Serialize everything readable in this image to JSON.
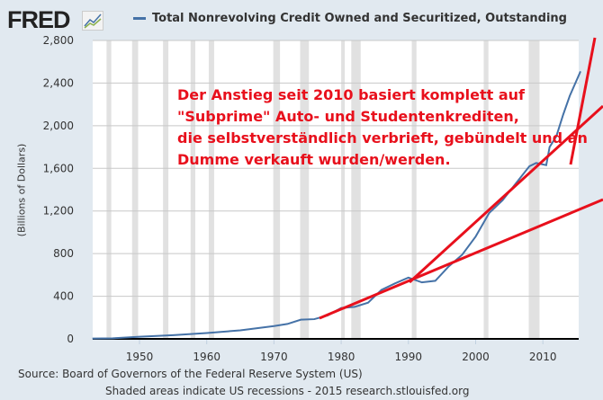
{
  "header": {
    "logo": "FRED",
    "legend": "Total Nonrevolving Credit Owned and Securitized, Outstanding"
  },
  "annotation": [
    "Der Anstieg seit 2010 basiert komplett auf",
    "\"Subprime\" Auto- und Studentenkrediten,",
    "die selbstverständlich verbrieft, gebündelt und an",
    "Dumme verkauft wurden/werden."
  ],
  "footer": {
    "source": "Source: Board of Governors of the Federal Reserve System (US)",
    "note": "Shaded areas indicate US recessions - 2015 research.stlouisfed.org"
  },
  "chart_data": {
    "type": "line",
    "title": "",
    "xlabel": "",
    "ylabel": "(Billions of Dollars)",
    "xlim": [
      1943,
      2015.6
    ],
    "ylim": [
      0,
      2800
    ],
    "x_ticks": [
      "1950",
      "1960",
      "1970",
      "1980",
      "1990",
      "2000",
      "2010"
    ],
    "y_ticks": [
      "0",
      "400",
      "800",
      "1,200",
      "1,600",
      "2,000",
      "2,400",
      "2,800"
    ],
    "grid": true,
    "series_color": "#4572a7",
    "annotation_color": "#e8101c",
    "recessions": [
      [
        1945.1,
        1945.8
      ],
      [
        1948.9,
        1949.8
      ],
      [
        1953.5,
        1954.3
      ],
      [
        1957.6,
        1958.3
      ],
      [
        1960.3,
        1961.1
      ],
      [
        1969.9,
        1970.9
      ],
      [
        1973.9,
        1975.2
      ],
      [
        1980.0,
        1980.5
      ],
      [
        1981.5,
        1982.9
      ],
      [
        1990.5,
        1991.2
      ],
      [
        2001.2,
        2001.9
      ],
      [
        2007.9,
        2009.5
      ]
    ],
    "series": [
      {
        "name": "Total Nonrevolving Credit Owned and Securitized, Outstanding",
        "x": [
          1943,
          1946,
          1950,
          1955,
          1960,
          1965,
          1970,
          1972,
          1974,
          1976,
          1978,
          1980,
          1982,
          1984,
          1986,
          1988,
          1990,
          1992,
          1994,
          1996,
          1998,
          2000,
          2002,
          2004,
          2006,
          2008,
          2009,
          2010.5,
          2011,
          2012,
          2013,
          2014,
          2015.6
        ],
        "y": [
          3,
          5,
          20,
          35,
          55,
          80,
          120,
          140,
          180,
          185,
          220,
          290,
          300,
          340,
          460,
          520,
          575,
          530,
          545,
          680,
          790,
          960,
          1180,
          1300,
          1460,
          1620,
          1650,
          1630,
          1800,
          1900,
          2100,
          2280,
          2510
        ]
      }
    ]
  }
}
